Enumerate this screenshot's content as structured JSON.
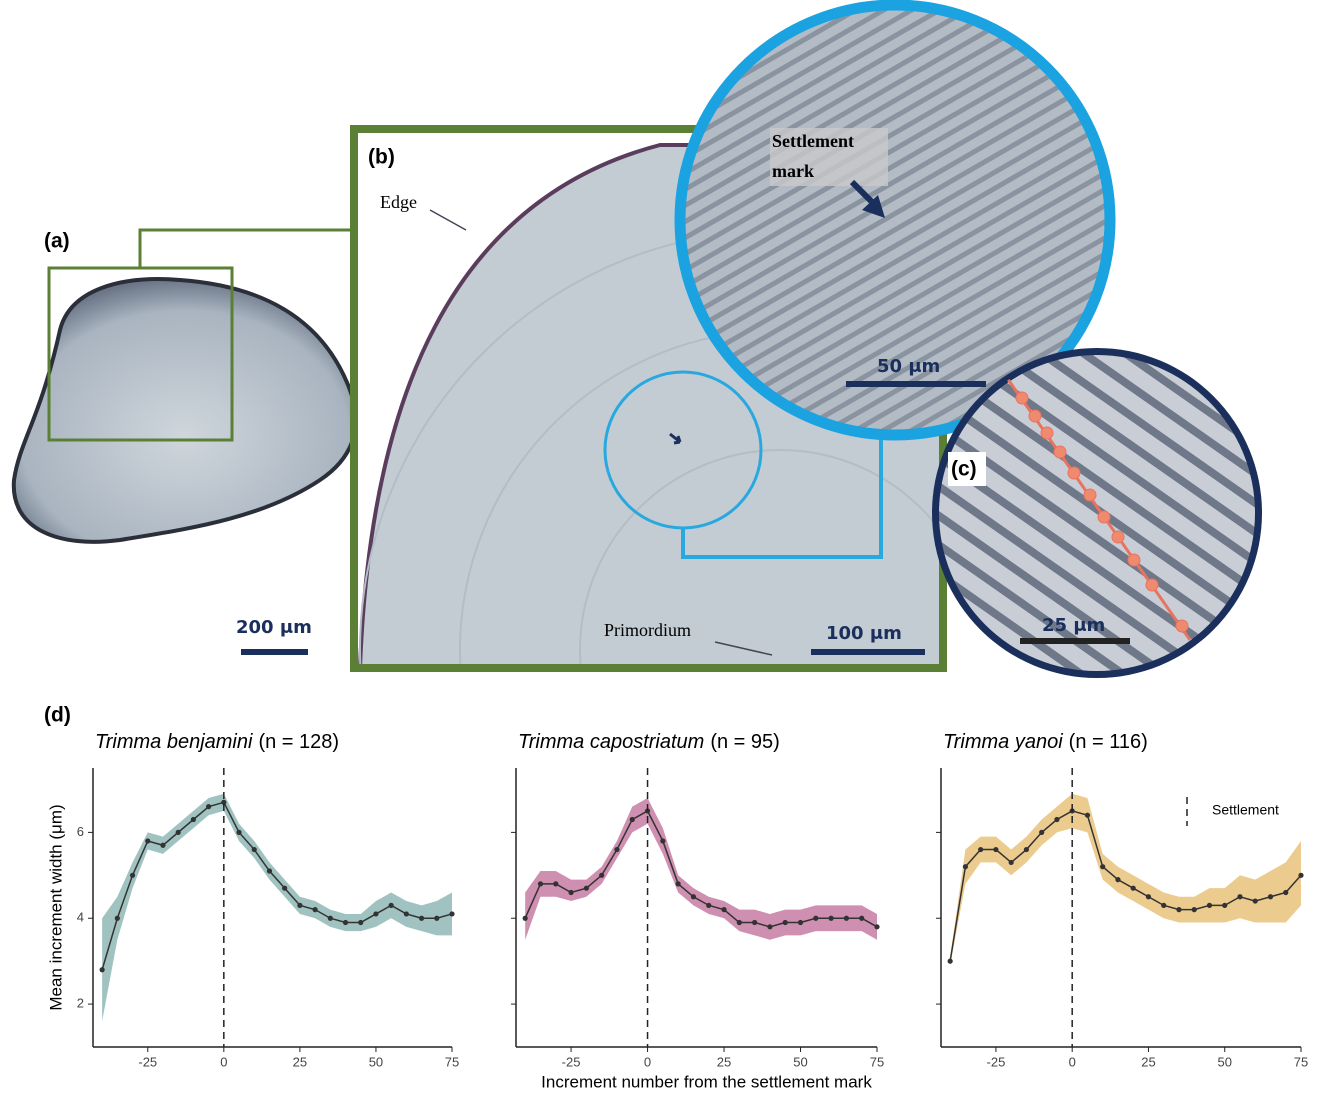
{
  "figure": {
    "panel_a": "(a)",
    "panel_b": "(b)",
    "panel_c": "(c)",
    "panel_d": "(d)",
    "edge": "Edge",
    "primordium": "Primordium",
    "settlement_mark_1": "Settlement",
    "settlement_mark_2": "mark",
    "scale_a": "200 μm",
    "scale_b": "100 μm",
    "scale_inset": "50 μm",
    "scale_c": "25 μm"
  },
  "chart_data": [
    {
      "type": "line",
      "title": "Trimma benjamini",
      "subtitle": "(n = 128)",
      "ylabel": "Mean increment width (μm)",
      "x": [
        -40,
        -35,
        -30,
        -25,
        -20,
        -15,
        -10,
        -5,
        0,
        5,
        10,
        15,
        20,
        25,
        30,
        35,
        40,
        45,
        50,
        55,
        60,
        65,
        70,
        75
      ],
      "xlim": [
        -43,
        75
      ],
      "xticks": [
        -25,
        0,
        25,
        50,
        75
      ],
      "ylim": [
        1,
        7.5
      ],
      "yticks": [
        2,
        4,
        6
      ],
      "show_ytick_labels": true,
      "vline": 0,
      "series": [
        {
          "color": "#333333",
          "band_color": "#8fb8b6",
          "values": [
            2.8,
            4.0,
            5.0,
            5.8,
            5.7,
            6.0,
            6.3,
            6.6,
            6.7,
            6.0,
            5.6,
            5.1,
            4.7,
            4.3,
            4.2,
            4.0,
            3.9,
            3.9,
            4.1,
            4.3,
            4.1,
            4.0,
            4.0,
            4.1
          ],
          "lower": [
            1.6,
            3.5,
            4.7,
            5.6,
            5.5,
            5.8,
            6.1,
            6.4,
            6.5,
            5.8,
            5.4,
            4.9,
            4.5,
            4.1,
            4.0,
            3.8,
            3.7,
            3.7,
            3.8,
            4.0,
            3.8,
            3.7,
            3.6,
            3.6
          ],
          "upper": [
            4.0,
            4.5,
            5.3,
            6.0,
            5.9,
            6.2,
            6.5,
            6.8,
            6.9,
            6.2,
            5.8,
            5.3,
            4.9,
            4.5,
            4.4,
            4.2,
            4.1,
            4.1,
            4.4,
            4.6,
            4.4,
            4.3,
            4.4,
            4.6
          ]
        }
      ]
    },
    {
      "type": "line",
      "title": "Trimma capostriatum",
      "subtitle": "(n = 95)",
      "xlabel": "Increment number from the settlement mark",
      "x": [
        -40,
        -35,
        -30,
        -25,
        -20,
        -15,
        -10,
        -5,
        0,
        5,
        10,
        15,
        20,
        25,
        30,
        35,
        40,
        45,
        50,
        55,
        60,
        65,
        70,
        75
      ],
      "xlim": [
        -43,
        75
      ],
      "xticks": [
        -25,
        0,
        25,
        50,
        75
      ],
      "ylim": [
        1,
        7.5
      ],
      "yticks": [
        2,
        4,
        6
      ],
      "show_ytick_labels": false,
      "vline": 0,
      "series": [
        {
          "color": "#333333",
          "band_color": "#c77ba3",
          "values": [
            4.0,
            4.8,
            4.8,
            4.6,
            4.7,
            5.0,
            5.6,
            6.3,
            6.5,
            5.8,
            4.8,
            4.5,
            4.3,
            4.2,
            3.9,
            3.9,
            3.8,
            3.9,
            3.9,
            4.0,
            4.0,
            4.0,
            4.0,
            3.8
          ],
          "lower": [
            3.5,
            4.5,
            4.5,
            4.4,
            4.5,
            4.8,
            5.4,
            6.0,
            6.2,
            5.5,
            4.6,
            4.3,
            4.1,
            4.0,
            3.7,
            3.6,
            3.5,
            3.6,
            3.6,
            3.7,
            3.7,
            3.7,
            3.7,
            3.5
          ],
          "upper": [
            4.6,
            5.1,
            5.1,
            4.9,
            4.9,
            5.2,
            5.8,
            6.6,
            6.8,
            6.1,
            5.0,
            4.7,
            4.5,
            4.4,
            4.2,
            4.2,
            4.1,
            4.2,
            4.2,
            4.3,
            4.3,
            4.3,
            4.3,
            4.1
          ]
        }
      ]
    },
    {
      "type": "line",
      "title": "Trimma yanoi",
      "subtitle": "(n = 116)",
      "x": [
        -40,
        -35,
        -30,
        -25,
        -20,
        -15,
        -10,
        -5,
        0,
        5,
        10,
        15,
        20,
        25,
        30,
        35,
        40,
        45,
        50,
        55,
        60,
        65,
        70,
        75
      ],
      "xlim": [
        -43,
        75
      ],
      "xticks": [
        -25,
        0,
        25,
        50,
        75
      ],
      "ylim": [
        1,
        7.5
      ],
      "yticks": [
        2,
        4,
        6
      ],
      "show_ytick_labels": false,
      "vline": 0,
      "vline_label": "Settlement",
      "series": [
        {
          "color": "#333333",
          "band_color": "#e8c27a",
          "values": [
            3.0,
            5.2,
            5.6,
            5.6,
            5.3,
            5.6,
            6.0,
            6.3,
            6.5,
            6.4,
            5.2,
            4.9,
            4.7,
            4.5,
            4.3,
            4.2,
            4.2,
            4.3,
            4.3,
            4.5,
            4.4,
            4.5,
            4.6,
            5.0
          ],
          "lower": [
            2.9,
            4.8,
            5.3,
            5.3,
            5.0,
            5.3,
            5.7,
            6.0,
            6.1,
            6.0,
            4.9,
            4.6,
            4.4,
            4.2,
            4.0,
            3.9,
            3.9,
            3.9,
            3.9,
            4.0,
            3.9,
            3.9,
            3.9,
            4.3
          ],
          "upper": [
            3.1,
            5.6,
            5.9,
            5.9,
            5.6,
            5.9,
            6.3,
            6.6,
            6.9,
            6.8,
            5.5,
            5.2,
            5.0,
            4.8,
            4.6,
            4.5,
            4.5,
            4.7,
            4.7,
            5.0,
            4.9,
            5.1,
            5.3,
            5.8
          ]
        }
      ]
    }
  ]
}
